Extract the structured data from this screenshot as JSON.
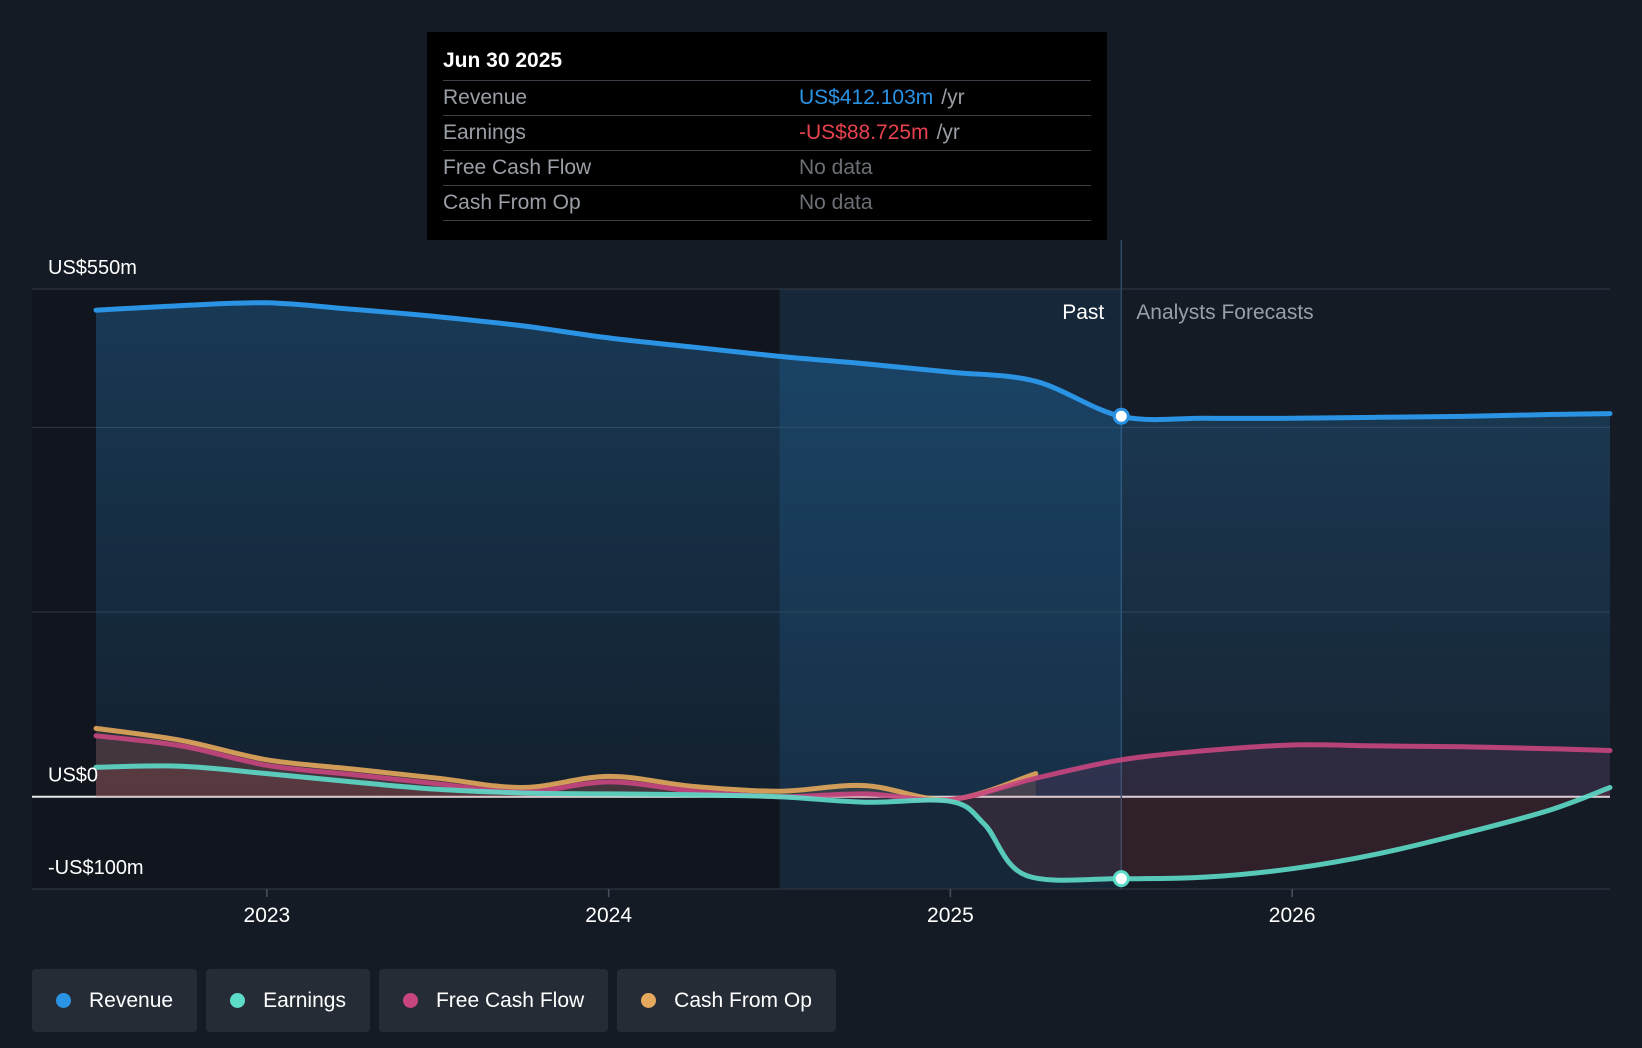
{
  "tooltip": {
    "date": "Jun 30 2025",
    "rows": [
      {
        "label": "Revenue",
        "value": "US$412.103m",
        "unit": "/yr",
        "color": "#2b93e3"
      },
      {
        "label": "Earnings",
        "value": "-US$88.725m",
        "unit": "/yr",
        "color": "#e8424f"
      },
      {
        "label": "Free Cash Flow",
        "value": "No data",
        "unit": "",
        "color": "#6b6f76"
      },
      {
        "label": "Cash From Op",
        "value": "No data",
        "unit": "",
        "color": "#6b6f76"
      }
    ]
  },
  "legend": [
    {
      "label": "Revenue",
      "color": "#2b93e3"
    },
    {
      "label": "Earnings",
      "color": "#5ddcc9"
    },
    {
      "label": "Free Cash Flow",
      "color": "#c8467f"
    },
    {
      "label": "Cash From Op",
      "color": "#e4a95c"
    }
  ],
  "chart_data": {
    "type": "line",
    "title": "",
    "xlabel": "",
    "ylabel": "",
    "x_range": [
      2022.5,
      2026.93
    ],
    "ylim": [
      -100,
      550
    ],
    "y_tick_labels": [
      {
        "value": 550,
        "label": "US$550m"
      },
      {
        "value": 0,
        "label": "US$0"
      },
      {
        "value": -100,
        "label": "-US$100m"
      }
    ],
    "y_gridlines": [
      550,
      400,
      200,
      0,
      -100
    ],
    "x_ticks": [
      {
        "value": 2023,
        "label": "2023"
      },
      {
        "value": 2024,
        "label": "2024"
      },
      {
        "value": 2025,
        "label": "2025"
      },
      {
        "value": 2026,
        "label": "2026"
      }
    ],
    "past_label": "Past",
    "forecast_label": "Analysts Forecasts",
    "divider_x": 2025.5,
    "highlight_start_x": 2024.5,
    "series": [
      {
        "name": "Revenue",
        "color": "#2b93e3",
        "points": [
          [
            2022.5,
            527
          ],
          [
            2022.75,
            532
          ],
          [
            2023.0,
            535
          ],
          [
            2023.25,
            528
          ],
          [
            2023.5,
            520
          ],
          [
            2023.75,
            510
          ],
          [
            2024.0,
            497
          ],
          [
            2024.25,
            487
          ],
          [
            2024.5,
            477
          ],
          [
            2024.75,
            469
          ],
          [
            2025.0,
            460
          ],
          [
            2025.25,
            450
          ],
          [
            2025.5,
            412
          ],
          [
            2025.75,
            410
          ],
          [
            2026.0,
            410
          ],
          [
            2026.25,
            411
          ],
          [
            2026.5,
            412
          ],
          [
            2026.75,
            414
          ],
          [
            2026.93,
            415
          ]
        ],
        "forecast_from": 2025.5
      },
      {
        "name": "Earnings",
        "color": "#5ddcc9",
        "points": [
          [
            2022.5,
            32
          ],
          [
            2022.75,
            33
          ],
          [
            2023.0,
            25
          ],
          [
            2023.25,
            16
          ],
          [
            2023.5,
            8
          ],
          [
            2023.75,
            4
          ],
          [
            2024.0,
            3
          ],
          [
            2024.25,
            2
          ],
          [
            2024.5,
            0
          ],
          [
            2024.75,
            -6
          ],
          [
            2025.0,
            -5
          ],
          [
            2025.1,
            -30
          ],
          [
            2025.22,
            -85
          ],
          [
            2025.5,
            -88.7
          ],
          [
            2025.75,
            -87
          ],
          [
            2026.0,
            -78
          ],
          [
            2026.25,
            -62
          ],
          [
            2026.5,
            -40
          ],
          [
            2026.75,
            -15
          ],
          [
            2026.93,
            10
          ]
        ],
        "forecast_from": 2025.5
      },
      {
        "name": "Free Cash Flow",
        "color": "#c8467f",
        "points": [
          [
            2022.5,
            66
          ],
          [
            2022.75,
            55
          ],
          [
            2023.0,
            34
          ],
          [
            2023.25,
            24
          ],
          [
            2023.5,
            14
          ],
          [
            2023.75,
            5
          ],
          [
            2024.0,
            16
          ],
          [
            2024.25,
            6
          ],
          [
            2024.5,
            0
          ],
          [
            2024.75,
            3
          ],
          [
            2025.0,
            -3
          ],
          [
            2025.25,
            20
          ],
          [
            2025.5,
            40
          ],
          [
            2025.75,
            50
          ],
          [
            2026.0,
            56
          ],
          [
            2026.25,
            55
          ],
          [
            2026.5,
            54
          ],
          [
            2026.75,
            52
          ],
          [
            2026.93,
            50
          ]
        ],
        "forecast_from": 2025.25
      },
      {
        "name": "Cash From Op",
        "color": "#e4a95c",
        "points": [
          [
            2022.5,
            74
          ],
          [
            2022.75,
            61
          ],
          [
            2023.0,
            40
          ],
          [
            2023.25,
            30
          ],
          [
            2023.5,
            20
          ],
          [
            2023.75,
            10
          ],
          [
            2024.0,
            22
          ],
          [
            2024.25,
            11
          ],
          [
            2024.5,
            6
          ],
          [
            2024.75,
            12
          ],
          [
            2025.0,
            -3
          ],
          [
            2025.25,
            25
          ]
        ],
        "forecast_from": null
      }
    ]
  }
}
